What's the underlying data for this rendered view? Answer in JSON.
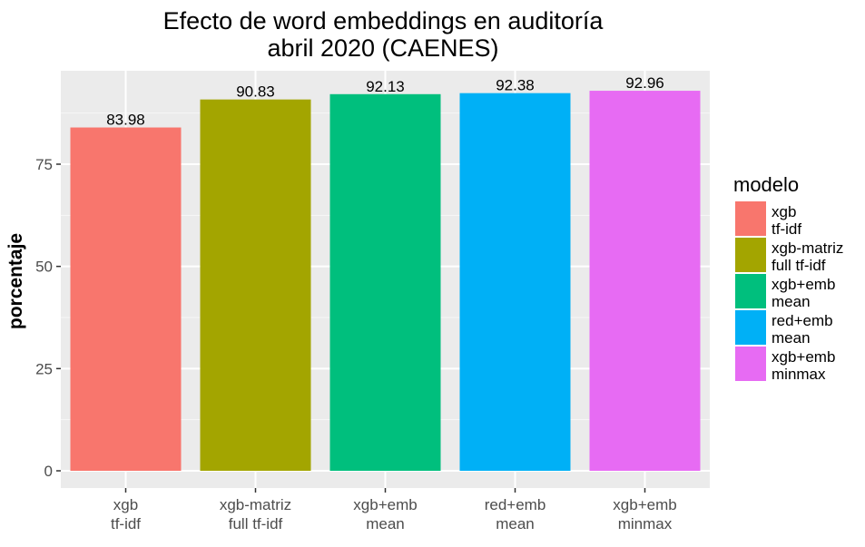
{
  "chart_data": {
    "type": "bar",
    "title": "Efecto de word embeddings en auditoría",
    "subtitle": "abril 2020 (CAENES)",
    "xlabel": "",
    "ylabel": "porcentaje",
    "ylim": [
      0,
      96
    ],
    "yticks": [
      0,
      25,
      50,
      75
    ],
    "grid": true,
    "legend_position": "right",
    "legend_title": "modelo",
    "categories": [
      [
        "xgb",
        "tf-idf"
      ],
      [
        "xgb-matriz",
        "full tf-idf"
      ],
      [
        "xgb+emb",
        "mean"
      ],
      [
        "red+emb",
        "mean"
      ],
      [
        "xgb+emb",
        "minmax"
      ]
    ],
    "values": [
      83.98,
      90.83,
      92.13,
      92.38,
      92.96
    ],
    "value_labels": [
      "83.98",
      "90.83",
      "92.13",
      "92.38",
      "92.96"
    ],
    "colors": [
      "#F8766D",
      "#A3A500",
      "#00BF7D",
      "#00B0F6",
      "#E76BF3"
    ]
  }
}
